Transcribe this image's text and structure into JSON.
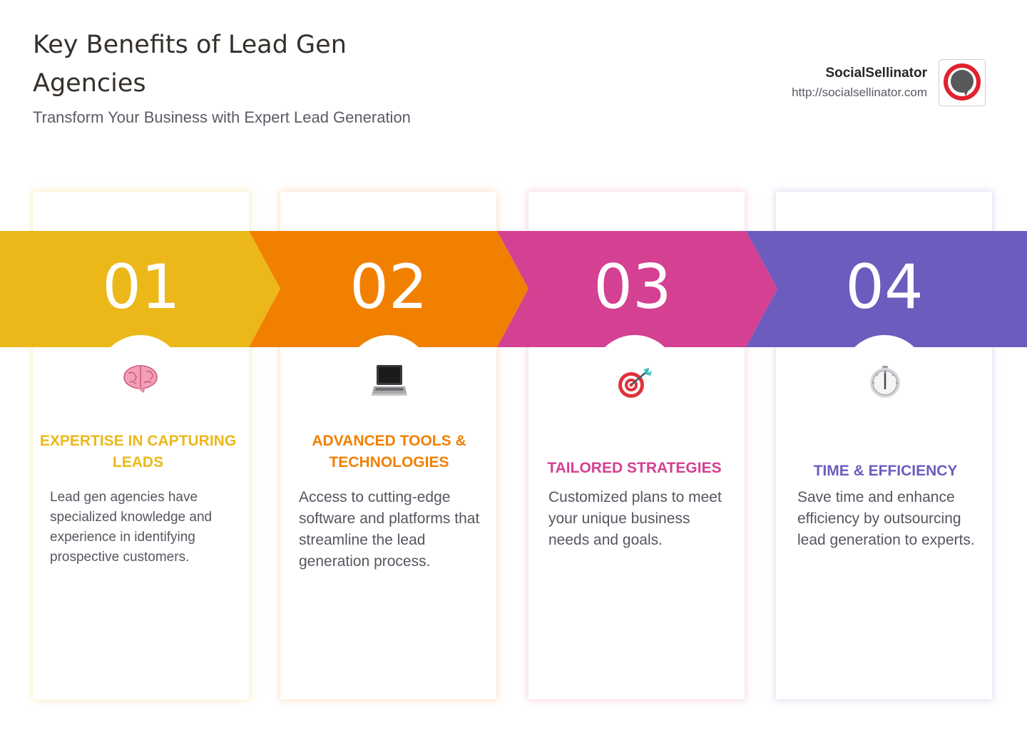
{
  "header": {
    "title": "Key Benefits of Lead Gen Agencies",
    "subtitle": "Transform Your Business with Expert Lead Generation"
  },
  "brand": {
    "name": "SocialSellinator",
    "url": "http://socialsellinator.com",
    "logo_icon": "speech-bubble-icon",
    "logo_color": "#e1212e"
  },
  "steps": [
    {
      "number": "01",
      "heading": "Expertise in Capturing Leads",
      "description": "Lead gen agencies have specialized knowledge and experience in identifying prospective customers.",
      "icon": "brain-icon",
      "color": "#ecb819"
    },
    {
      "number": "02",
      "heading": "Advanced Tools & Technologies",
      "description": "Access to cutting-edge software and platforms that streamline the lead generation process.",
      "icon": "laptop-icon",
      "color": "#f18000"
    },
    {
      "number": "03",
      "heading": "Tailored Strategies",
      "description": "Customized plans to meet your unique business needs and goals.",
      "icon": "target-icon",
      "color": "#d44092"
    },
    {
      "number": "04",
      "heading": "Time & Efficiency",
      "description": "Save time and enhance efficiency by outsourcing lead generation to experts.",
      "icon": "timer-icon",
      "color": "#6c5cbe"
    }
  ]
}
